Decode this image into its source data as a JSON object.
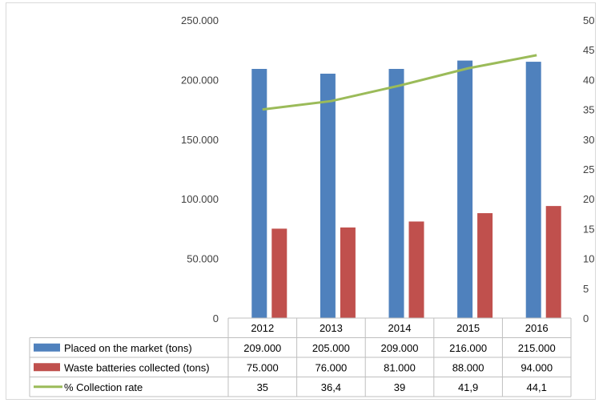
{
  "chart_data": {
    "type": "bar",
    "categories": [
      "2012",
      "2013",
      "2014",
      "2015",
      "2016"
    ],
    "series": [
      {
        "name": "Placed on the market (tons)",
        "type": "bar",
        "axis": "left",
        "color": "#4f81bd",
        "values": [
          209000,
          205000,
          209000,
          216000,
          215000
        ],
        "labels": [
          "209.000",
          "205.000",
          "209.000",
          "216.000",
          "215.000"
        ]
      },
      {
        "name": "Waste batteries collected (tons)",
        "type": "bar",
        "axis": "left",
        "color": "#c0504d",
        "values": [
          75000,
          76000,
          81000,
          88000,
          94000
        ],
        "labels": [
          "75.000",
          "76.000",
          "81.000",
          "88.000",
          "94.000"
        ]
      },
      {
        "name": "% Collection rate",
        "type": "line",
        "axis": "right",
        "color": "#9bbb59",
        "values": [
          35,
          36.4,
          39,
          41.9,
          44.1
        ],
        "labels": [
          "35",
          "36,4",
          "39",
          "41,9",
          "44,1"
        ]
      }
    ],
    "y_left": {
      "ylim": [
        0,
        250000
      ],
      "ticks": [
        "0",
        "50.000",
        "100.000",
        "150.000",
        "200.000",
        "250.000"
      ]
    },
    "y_right": {
      "ylim": [
        0,
        50
      ],
      "ticks": [
        "0",
        "5",
        "10",
        "15",
        "20",
        "25",
        "30",
        "35",
        "40",
        "45",
        "50"
      ]
    },
    "grid": false,
    "legend": "data-table"
  }
}
